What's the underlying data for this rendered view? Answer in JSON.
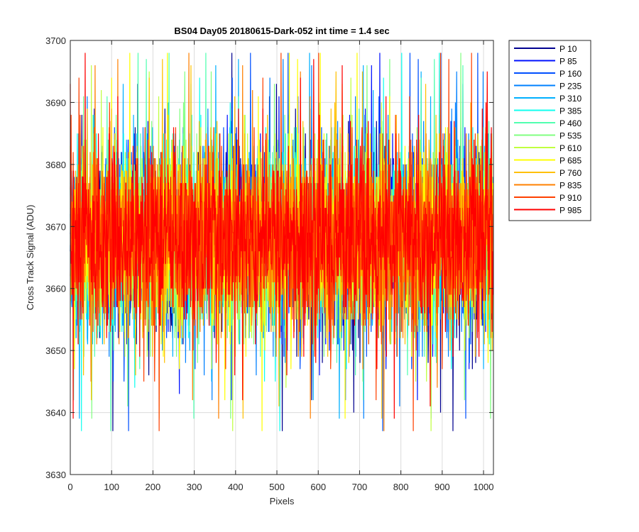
{
  "chart_data": {
    "type": "line",
    "title": "BS04 Day05 20180615-Dark-052 int time = 1.4 sec",
    "xlabel": "Pixels",
    "ylabel": "Cross Track Signal (ADU)",
    "xlim": [
      0,
      1024
    ],
    "ylim": [
      3630,
      3700
    ],
    "xticks": [
      0,
      100,
      200,
      300,
      400,
      500,
      600,
      700,
      800,
      900,
      1000
    ],
    "yticks": [
      3630,
      3640,
      3650,
      3660,
      3670,
      3680,
      3690,
      3700
    ],
    "grid": true,
    "legend_position": "outside-top-right",
    "n_points": 1024,
    "noise": {
      "mean": 3668,
      "core_spread": 7,
      "min": 3637,
      "max": 3698
    },
    "series": [
      {
        "name": "P 10",
        "color": "#00008f"
      },
      {
        "name": "P 85",
        "color": "#0010ff"
      },
      {
        "name": "P 160",
        "color": "#0050ff"
      },
      {
        "name": "P 235",
        "color": "#0080ff"
      },
      {
        "name": "P 310",
        "color": "#00b0ff"
      },
      {
        "name": "P 385",
        "color": "#10ffef"
      },
      {
        "name": "P 460",
        "color": "#50ffb0"
      },
      {
        "name": "P 535",
        "color": "#80ff80"
      },
      {
        "name": "P 610",
        "color": "#c0ff40"
      },
      {
        "name": "P 685",
        "color": "#ffff00"
      },
      {
        "name": "P 760",
        "color": "#ffc000"
      },
      {
        "name": "P 835",
        "color": "#ff8000"
      },
      {
        "name": "P 910",
        "color": "#ff4000"
      },
      {
        "name": "P 985",
        "color": "#ff0000"
      }
    ]
  }
}
